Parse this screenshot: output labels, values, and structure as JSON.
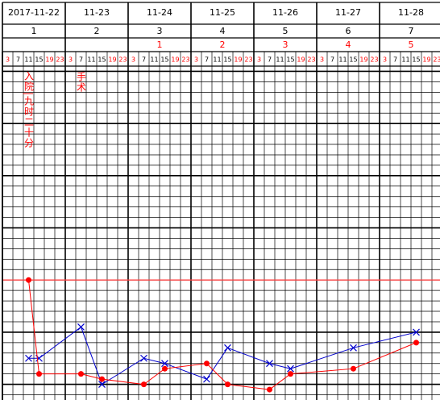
{
  "header": {
    "dates": [
      "2017-11-22",
      "11-23",
      "11-24",
      "11-25",
      "11-26",
      "11-27",
      "11-28"
    ],
    "days": [
      1,
      2,
      3,
      4,
      5,
      6,
      7
    ],
    "post_op_days": [
      null,
      null,
      1,
      2,
      3,
      4,
      5
    ],
    "hours": [
      3,
      7,
      11,
      15,
      19,
      23
    ],
    "red_hours": [
      3,
      19,
      23
    ]
  },
  "annotations": [
    "入院|九时二十分",
    "手术"
  ],
  "chart_data": {
    "type": "line",
    "xlim": [
      0,
      42
    ],
    "ylim": [
      34.7,
      41.1
    ],
    "yticks": [
      34.8,
      35,
      35.2,
      35.4,
      35.6,
      35.8,
      36,
      36.2,
      36.4,
      36.6,
      36.8,
      37,
      37.2,
      37.4,
      37.6,
      37.8,
      38,
      38.2,
      38.4,
      38.6,
      38.8,
      39,
      39.2,
      39.4,
      39.6,
      39.8,
      40,
      40.2,
      40.4,
      40.6,
      40.8,
      41
    ],
    "major_yticks": [
      35,
      36,
      37,
      38,
      39,
      40,
      41
    ],
    "reference_line": 37,
    "reference_color": "#ff4040",
    "series": [
      {
        "color": "#0000cc",
        "marker": "x",
        "x": [
          2,
          3,
          7,
          9,
          13,
          15,
          19,
          21,
          25,
          27,
          33,
          39
        ],
        "values": [
          35.5,
          35.5,
          36.1,
          35.0,
          35.5,
          35.4,
          35.1,
          35.7,
          35.4,
          35.3,
          35.7,
          36.0
        ]
      },
      {
        "color": "#ff0000",
        "marker": "dot",
        "x": [
          2,
          3,
          7,
          9,
          13,
          15,
          19,
          21,
          25,
          27,
          33,
          39
        ],
        "values": [
          37.0,
          35.2,
          35.2,
          35.1,
          35.0,
          35.3,
          35.4,
          35.0,
          34.9,
          35.2,
          35.3,
          35.8
        ]
      }
    ]
  }
}
